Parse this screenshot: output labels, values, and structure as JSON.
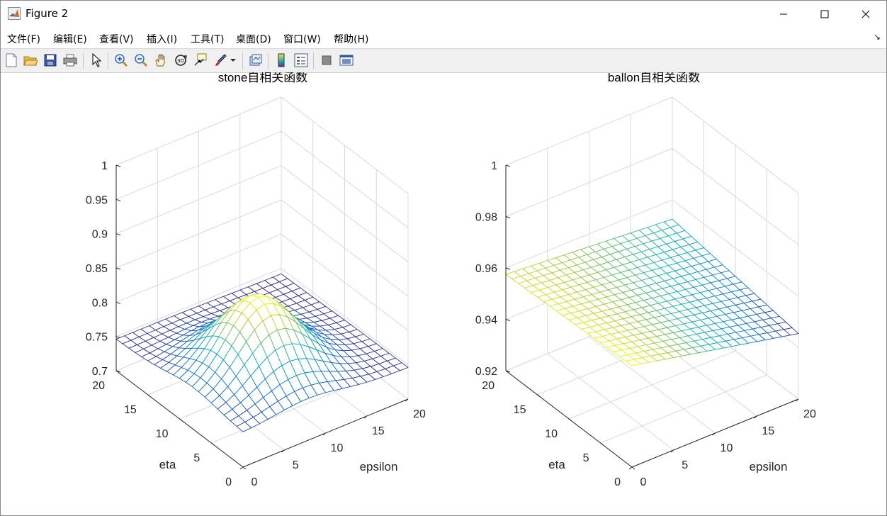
{
  "window": {
    "title": "Figure 2"
  },
  "menu": [
    "文件(F)",
    "编辑(E)",
    "查看(V)",
    "插入(I)",
    "工具(T)",
    "桌面(D)",
    "窗口(W)",
    "帮助(H)"
  ],
  "toolbar": [
    "new-figure-icon",
    "open-file-icon",
    "save-icon",
    "print-icon",
    "select-arrow-icon",
    "zoom-in-icon",
    "zoom-out-icon",
    "pan-hand-icon",
    "rotate-3d-icon",
    "data-cursor-icon",
    "brush-icon",
    "brush-dropdown-icon",
    "link-plot-icon",
    "colorbar-icon",
    "legend-icon",
    "hide-plot-tools-icon",
    "show-plot-tools-icon"
  ],
  "plots": [
    {
      "title": "stone自相关函数",
      "zlim": [
        0.7,
        1.0
      ],
      "zticks": [
        "0.7",
        "0.75",
        "0.8",
        "0.85",
        "0.9",
        "0.95",
        "1"
      ],
      "xlabel": "epsilon",
      "ylabel": "eta",
      "xticks": [
        "0",
        "5",
        "10",
        "15",
        "20"
      ],
      "yticks": [
        "0",
        "5",
        "10",
        "15",
        "20"
      ]
    },
    {
      "title": "ballon自相关函数",
      "zlim": [
        0.92,
        1.0
      ],
      "zticks": [
        "0.92",
        "0.94",
        "0.96",
        "0.98",
        "1"
      ],
      "xlabel": "epsilon",
      "ylabel": "eta",
      "xticks": [
        "0",
        "5",
        "10",
        "15",
        "20"
      ],
      "yticks": [
        "0",
        "5",
        "10",
        "15",
        "20"
      ]
    }
  ]
}
